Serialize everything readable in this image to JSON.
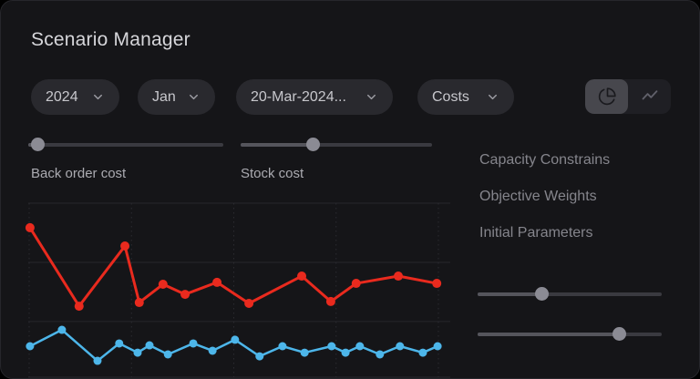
{
  "window": {
    "title": "Scenario Manager"
  },
  "filters": {
    "year": {
      "value": "2024"
    },
    "month": {
      "value": "Jan"
    },
    "date": {
      "value": "20-Mar-2024..."
    },
    "metric": {
      "value": "Costs"
    }
  },
  "view_toggle": {
    "options": [
      "pie-chart-icon",
      "trend-line-icon"
    ],
    "selected": "pie-chart-icon"
  },
  "sliders": {
    "back_order_cost": {
      "label": "Back order cost",
      "value_pct": 5
    },
    "stock_cost": {
      "label": "Stock cost",
      "value_pct": 38
    },
    "param_top": {
      "value_pct": 35
    },
    "param_bottom": {
      "value_pct": 77
    }
  },
  "menu": {
    "items": [
      {
        "label": "Capacity Constrains"
      },
      {
        "label": "Objective Weights"
      },
      {
        "label": "Initial Parameters"
      }
    ]
  },
  "colors": {
    "card_bg": "#151518",
    "pill_bg": "#29292e",
    "accent_red": "#e92a1e",
    "accent_blue": "#4db6ea",
    "grid": "#26262b",
    "slider_thumb": "#8b8b94"
  },
  "chart_data": {
    "type": "line",
    "title": "",
    "xlabel": "",
    "ylabel": "",
    "xlim": [
      0,
      100
    ],
    "ylim": [
      0,
      100
    ],
    "axis_tick_labels_visible": false,
    "legend": "none",
    "grid": {
      "vertical_dotted_x": [
        0,
        25,
        50,
        75,
        100
      ],
      "horizontal_y": [
        0,
        32,
        66,
        100
      ]
    },
    "series": [
      {
        "name": "costs-red",
        "color": "#e92a1e",
        "marker_radius": 5,
        "line_width": 3,
        "x": [
          0.2,
          12.2,
          23.4,
          26.9,
          32.7,
          38.1,
          45.9,
          53.7,
          66.6,
          73.7,
          79.9,
          90.2,
          99.6
        ],
        "y": [
          85.9,
          40.8,
          75.4,
          42.9,
          53.4,
          47.6,
          54.5,
          42.4,
          58.1,
          43.5,
          53.9,
          58.1,
          53.9
        ]
      },
      {
        "name": "costs-blue",
        "color": "#4db6ea",
        "marker_radius": 4.5,
        "line_width": 2.5,
        "x": [
          0.2,
          8.0,
          16.7,
          22.0,
          26.5,
          29.4,
          33.9,
          40.1,
          44.8,
          50.3,
          56.3,
          61.9,
          67.3,
          73.9,
          77.3,
          80.8,
          85.7,
          90.6,
          96.2,
          99.8
        ],
        "y": [
          17.8,
          27.2,
          9.4,
          19.4,
          14.1,
          18.3,
          13.1,
          19.4,
          15.2,
          21.5,
          12.0,
          17.8,
          14.1,
          17.8,
          14.1,
          17.8,
          13.1,
          17.8,
          14.1,
          17.8
        ]
      }
    ]
  }
}
